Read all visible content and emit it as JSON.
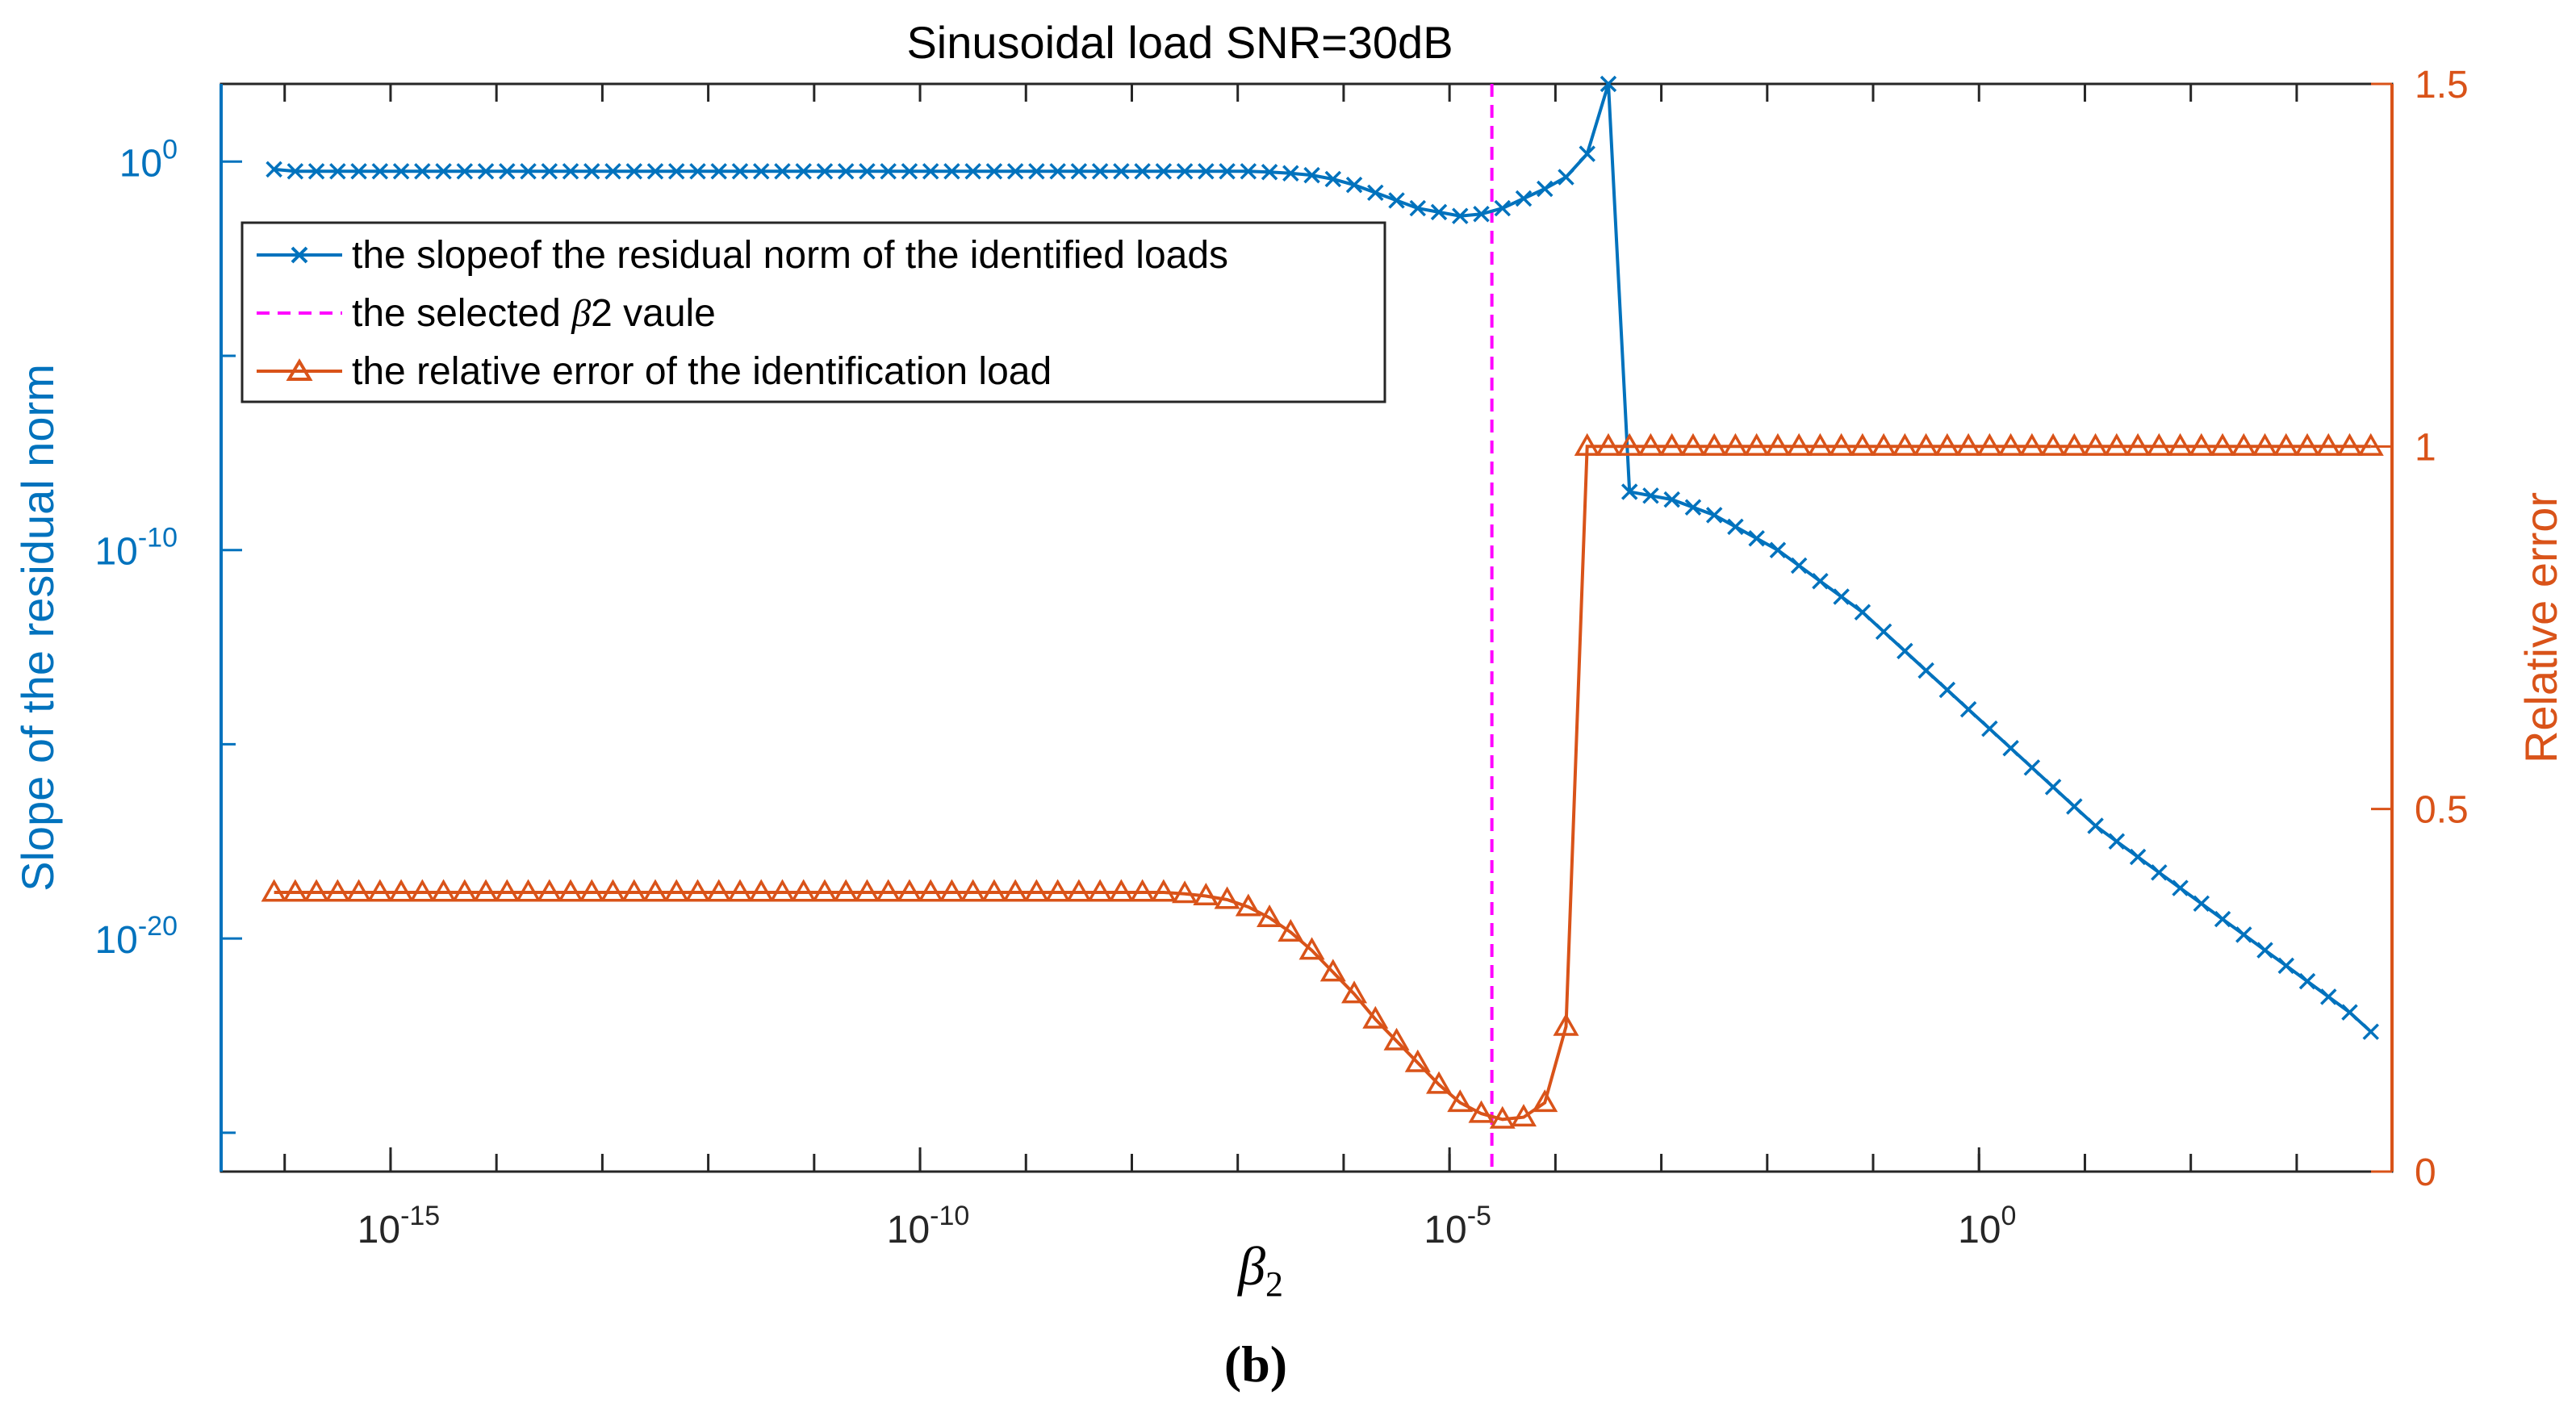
{
  "chart_data": {
    "type": "line",
    "title": "Sinusoidal load SNR=30dB",
    "xlabel": "β2",
    "xlabel_base": "β",
    "xlabel_sub": "2",
    "ylabel_left": "Slope of the residual norm",
    "ylabel_right": "Relative error",
    "panel_label": "(b)",
    "x_scale": "log",
    "xlim_exp": [
      -16.6,
      3.9
    ],
    "x_ticks": [
      {
        "exp": -15,
        "base": "10",
        "sup": "-15"
      },
      {
        "exp": -10,
        "base": "10",
        "sup": "-10"
      },
      {
        "exp": -5,
        "base": "10",
        "sup": "-5"
      },
      {
        "exp": 0,
        "base": "10",
        "sup": "0"
      }
    ],
    "y_left_scale": "log",
    "ylim_left_exp": [
      -26,
      2
    ],
    "y_left_ticks": [
      {
        "exp": 0,
        "base": "10",
        "sup": "0"
      },
      {
        "exp": -10,
        "base": "10",
        "sup": "-10"
      },
      {
        "exp": -20,
        "base": "10",
        "sup": "-20"
      }
    ],
    "ylim_right": [
      0,
      1.5
    ],
    "y_right_ticks": [
      "0",
      "0.5",
      "1",
      "1.5"
    ],
    "selected_beta2_exp": -4.6,
    "legend": [
      "the slopeof the residual norm of the identified loads",
      "the selected β2 vaule",
      "the relative error of the identification load"
    ],
    "legend_line2_pre": "the selected ",
    "legend_line2_beta": "β",
    "legend_line2_post": "2 vaule",
    "series": [
      {
        "name": "the slopeof the residual norm of the identified loads",
        "axis": "left",
        "marker": "x",
        "color": "#0072BD",
        "x_exp": [
          -16.1,
          -15.9,
          -15.7,
          -15.5,
          -15.3,
          -15.1,
          -14.9,
          -14.7,
          -14.5,
          -14.3,
          -14.1,
          -13.9,
          -13.7,
          -13.5,
          -13.3,
          -13.1,
          -12.9,
          -12.7,
          -12.5,
          -12.3,
          -12.1,
          -11.9,
          -11.7,
          -11.5,
          -11.3,
          -11.1,
          -10.9,
          -10.7,
          -10.5,
          -10.3,
          -10.1,
          -9.9,
          -9.7,
          -9.5,
          -9.3,
          -9.1,
          -8.9,
          -8.7,
          -8.5,
          -8.3,
          -8.1,
          -7.9,
          -7.7,
          -7.5,
          -7.3,
          -7.1,
          -6.9,
          -6.7,
          -6.5,
          -6.3,
          -6.1,
          -5.9,
          -5.7,
          -5.5,
          -5.3,
          -5.1,
          -4.9,
          -4.7,
          -4.5,
          -4.3,
          -4.1,
          -3.9,
          -3.7,
          -3.5,
          -3.3,
          -3.1,
          -2.9,
          -2.7,
          -2.5,
          -2.3,
          -2.1,
          -1.9,
          -1.7,
          -1.5,
          -1.3,
          -1.1,
          -0.9,
          -0.7,
          -0.5,
          -0.3,
          -0.1,
          0.1,
          0.3,
          0.5,
          0.7,
          0.9,
          1.1,
          1.3,
          1.5,
          1.7,
          1.9,
          2.1,
          2.3,
          2.5,
          2.7,
          2.9,
          3.1,
          3.3,
          3.5,
          3.7
        ],
        "y_exp": [
          -0.2,
          -0.25,
          -0.25,
          -0.25,
          -0.25,
          -0.25,
          -0.25,
          -0.25,
          -0.25,
          -0.25,
          -0.25,
          -0.25,
          -0.25,
          -0.25,
          -0.25,
          -0.25,
          -0.25,
          -0.25,
          -0.25,
          -0.25,
          -0.25,
          -0.25,
          -0.25,
          -0.25,
          -0.25,
          -0.25,
          -0.25,
          -0.25,
          -0.25,
          -0.25,
          -0.25,
          -0.25,
          -0.25,
          -0.25,
          -0.25,
          -0.25,
          -0.25,
          -0.25,
          -0.25,
          -0.25,
          -0.25,
          -0.25,
          -0.25,
          -0.25,
          -0.25,
          -0.25,
          -0.25,
          -0.27,
          -0.3,
          -0.35,
          -0.45,
          -0.6,
          -0.8,
          -1.0,
          -1.2,
          -1.3,
          -1.4,
          -1.35,
          -1.2,
          -0.95,
          -0.7,
          -0.4,
          0.2,
          2.0,
          -8.5,
          -8.6,
          -8.7,
          -8.9,
          -9.1,
          -9.4,
          -9.7,
          -10.0,
          -10.4,
          -10.8,
          -11.2,
          -11.6,
          -12.1,
          -12.6,
          -13.1,
          -13.6,
          -14.1,
          -14.6,
          -15.1,
          -15.6,
          -16.1,
          -16.6,
          -17.1,
          -17.5,
          -17.9,
          -18.3,
          -18.7,
          -19.1,
          -19.5,
          -19.9,
          -20.3,
          -20.7,
          -21.1,
          -21.5,
          -21.9,
          -22.4
        ]
      },
      {
        "name": "the relative error of the identification load",
        "axis": "right",
        "marker": "triangle",
        "color": "#D95319",
        "x_exp": [
          -16.1,
          -15.9,
          -15.7,
          -15.5,
          -15.3,
          -15.1,
          -14.9,
          -14.7,
          -14.5,
          -14.3,
          -14.1,
          -13.9,
          -13.7,
          -13.5,
          -13.3,
          -13.1,
          -12.9,
          -12.7,
          -12.5,
          -12.3,
          -12.1,
          -11.9,
          -11.7,
          -11.5,
          -11.3,
          -11.1,
          -10.9,
          -10.7,
          -10.5,
          -10.3,
          -10.1,
          -9.9,
          -9.7,
          -9.5,
          -9.3,
          -9.1,
          -8.9,
          -8.7,
          -8.5,
          -8.3,
          -8.1,
          -7.9,
          -7.7,
          -7.5,
          -7.3,
          -7.1,
          -6.9,
          -6.7,
          -6.5,
          -6.3,
          -6.1,
          -5.9,
          -5.7,
          -5.5,
          -5.3,
          -5.1,
          -4.9,
          -4.7,
          -4.5,
          -4.3,
          -4.1,
          -3.9,
          -3.7,
          -3.5,
          -3.3,
          -3.1,
          -2.9,
          -2.7,
          -2.5,
          -2.3,
          -2.1,
          -1.9,
          -1.7,
          -1.5,
          -1.3,
          -1.1,
          -0.9,
          -0.7,
          -0.5,
          -0.3,
          -0.1,
          0.1,
          0.3,
          0.5,
          0.7,
          0.9,
          1.1,
          1.3,
          1.5,
          1.7,
          1.9,
          2.1,
          2.3,
          2.5,
          2.7,
          2.9,
          3.1,
          3.3,
          3.5,
          3.7
        ],
        "y": [
          0.385,
          0.385,
          0.385,
          0.385,
          0.385,
          0.385,
          0.385,
          0.385,
          0.385,
          0.385,
          0.385,
          0.385,
          0.385,
          0.385,
          0.385,
          0.385,
          0.385,
          0.385,
          0.385,
          0.385,
          0.385,
          0.385,
          0.385,
          0.385,
          0.385,
          0.385,
          0.385,
          0.385,
          0.385,
          0.385,
          0.385,
          0.385,
          0.385,
          0.385,
          0.385,
          0.385,
          0.385,
          0.385,
          0.385,
          0.385,
          0.385,
          0.385,
          0.385,
          0.383,
          0.38,
          0.375,
          0.365,
          0.35,
          0.33,
          0.305,
          0.275,
          0.245,
          0.21,
          0.18,
          0.15,
          0.12,
          0.095,
          0.08,
          0.072,
          0.075,
          0.095,
          0.2,
          1.0,
          1.0,
          1.0,
          1.0,
          1.0,
          1.0,
          1.0,
          1.0,
          1.0,
          1.0,
          1.0,
          1.0,
          1.0,
          1.0,
          1.0,
          1.0,
          1.0,
          1.0,
          1.0,
          1.0,
          1.0,
          1.0,
          1.0,
          1.0,
          1.0,
          1.0,
          1.0,
          1.0,
          1.0,
          1.0,
          1.0,
          1.0,
          1.0,
          1.0,
          1.0,
          1.0,
          1.0,
          1.0
        ]
      }
    ]
  },
  "colors": {
    "left_axis": "#0072BD",
    "right_axis": "#D95319",
    "selected_line": "#FF00FF"
  }
}
